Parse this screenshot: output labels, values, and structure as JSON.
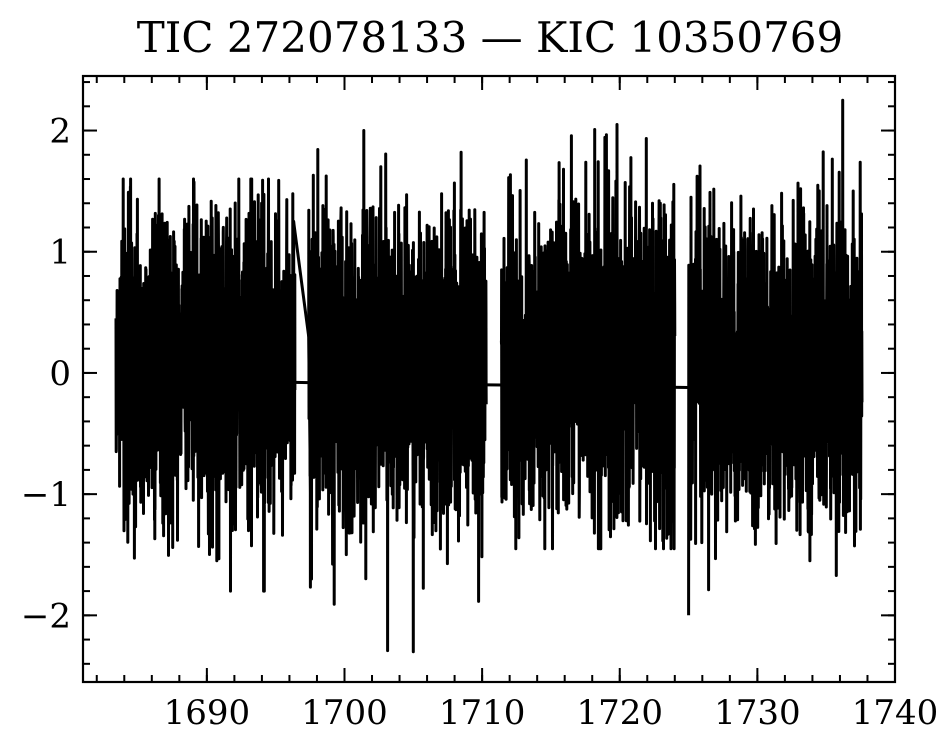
{
  "chart_data": {
    "type": "line",
    "title": "TIC 272078133 — KIC 10350769",
    "xlabel": "",
    "ylabel": "",
    "xlim": [
      1681,
      1740
    ],
    "ylim": [
      -2.55,
      2.45
    ],
    "x_ticks": [
      1690,
      1700,
      1710,
      1720,
      1730,
      1740
    ],
    "y_ticks": [
      -2,
      -1,
      0,
      1,
      2
    ],
    "x_tick_labels": [
      "1690",
      "1700",
      "1710",
      "1720",
      "1730",
      "1740"
    ],
    "y_tick_labels": [
      "−2",
      "−1",
      "0",
      "1",
      "2"
    ],
    "grid": false,
    "legend": "none",
    "series": [
      {
        "segments": [
          {
            "x_start": 1683.4,
            "x_end": 1696.4,
            "n_points": 1400,
            "mean": 0.1,
            "spread": 0.62,
            "min": -1.8,
            "max": 1.6
          },
          {
            "x_start": 1697.4,
            "x_end": 1710.3,
            "n_points": 1400,
            "mean": 0.05,
            "spread": 0.62,
            "min": -2.3,
            "max": 2.0
          },
          {
            "x_start": 1711.4,
            "x_end": 1724.0,
            "n_points": 1400,
            "mean": 0.1,
            "spread": 0.62,
            "min": -1.45,
            "max": 2.05
          },
          {
            "x_start": 1725.0,
            "x_end": 1737.6,
            "n_points": 1400,
            "mean": 0.05,
            "spread": 0.62,
            "min": -2.0,
            "max": 2.25
          }
        ],
        "notable_points": [
          {
            "x": 1696.3,
            "y": 1.25
          },
          {
            "x": 1697.4,
            "y": 0.3
          },
          {
            "x": 1697.6,
            "y": -1.7
          },
          {
            "x": 1701.4,
            "y": 2.0
          },
          {
            "x": 1705.0,
            "y": -2.3
          },
          {
            "x": 1719.8,
            "y": 2.05
          },
          {
            "x": 1725.0,
            "y": -2.0
          },
          {
            "x": 1736.2,
            "y": 2.25
          }
        ],
        "gap_connectors": [
          {
            "x1": 1683.4,
            "y1": -0.05,
            "x2": 1697.4,
            "y2": -0.08
          },
          {
            "x1": 1703.5,
            "y1": -0.09,
            "x2": 1711.4,
            "y2": -0.1
          },
          {
            "x1": 1711.4,
            "y1": -0.1,
            "x2": 1725.0,
            "y2": -0.12
          },
          {
            "x1": 1725.0,
            "y1": -0.12,
            "x2": 1737.6,
            "y2": -0.1
          }
        ]
      }
    ]
  }
}
